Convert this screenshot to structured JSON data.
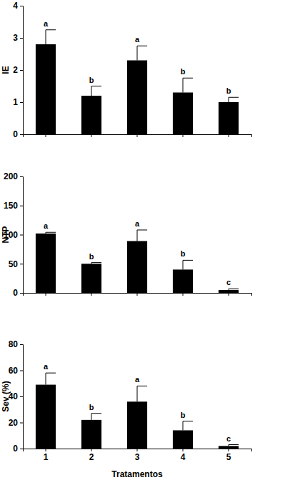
{
  "chart_data": [
    {
      "type": "bar",
      "ylabel": "IE",
      "categories": [
        "1",
        "2",
        "3",
        "4",
        "5"
      ],
      "values": [
        2.8,
        1.2,
        2.3,
        1.3,
        1.0
      ],
      "errors": [
        0.45,
        0.3,
        0.45,
        0.45,
        0.15
      ],
      "annotations": [
        "a",
        "b",
        "a",
        "b",
        "b"
      ],
      "color": "#000000",
      "ylim": [
        0,
        4
      ],
      "yticks": [
        0,
        1,
        2,
        3,
        4
      ],
      "tick_labels": "y"
    },
    {
      "type": "bar",
      "ylabel": "NTP",
      "categories": [
        "1",
        "2",
        "3",
        "4",
        "5"
      ],
      "values": [
        102,
        50,
        89,
        40,
        5
      ],
      "errors": [
        2,
        2,
        19,
        16,
        2
      ],
      "annotations": [
        "a",
        "b",
        "a",
        "b",
        "c"
      ],
      "color": "#000000",
      "ylim": [
        0,
        200
      ],
      "yticks": [
        0,
        50,
        100,
        150,
        200
      ],
      "tick_labels": "y"
    },
    {
      "type": "bar",
      "ylabel": "Sev (%)",
      "xlabel": "Tratamentos",
      "categories": [
        "1",
        "2",
        "3",
        "4",
        "5"
      ],
      "values": [
        49,
        22,
        36,
        14,
        2
      ],
      "errors": [
        9,
        5,
        12,
        7,
        1
      ],
      "annotations": [
        "a",
        "b",
        "a",
        "b",
        "c"
      ],
      "color": "#000000",
      "ylim": [
        0,
        80
      ],
      "yticks": [
        0,
        20,
        40,
        60,
        80
      ]
    }
  ]
}
